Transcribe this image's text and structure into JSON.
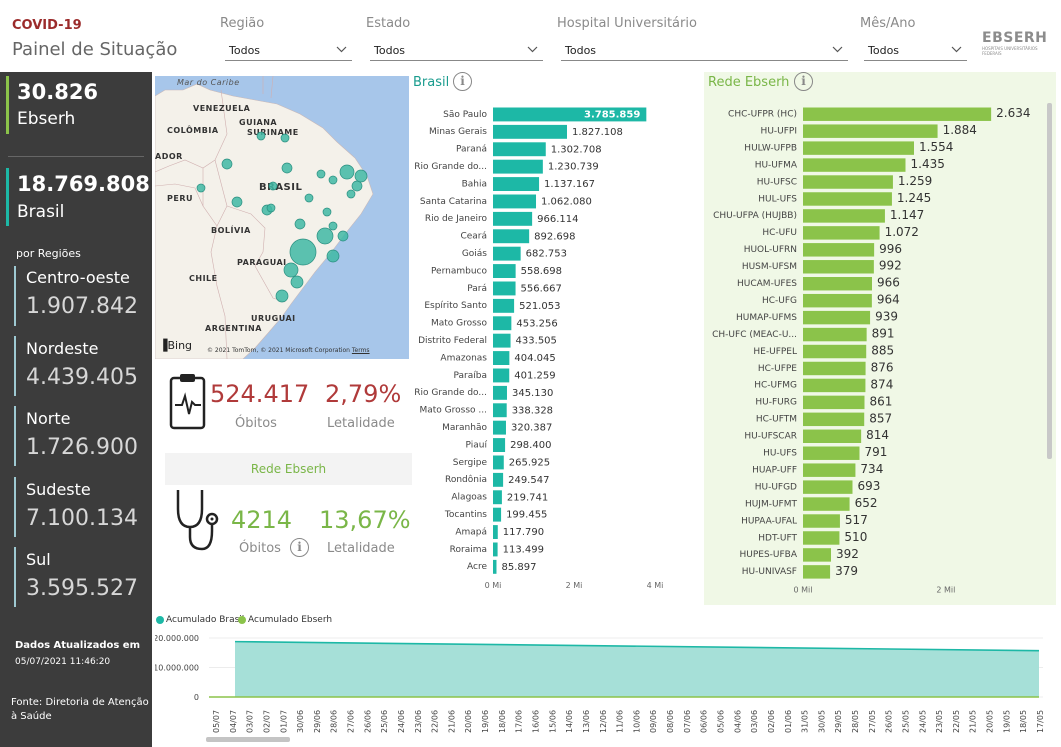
{
  "header": {
    "app_tag": "COVID-19",
    "title": "Painel de Situação",
    "logo_text": "EBSERH",
    "logo_subtitle": "HOSPITAIS UNIVERSITÁRIOS FEDERAIS"
  },
  "filters": [
    {
      "label": "Região",
      "value": "Todos"
    },
    {
      "label": "Estado",
      "value": "Todos"
    },
    {
      "label": "Hospital Universitário",
      "value": "Todos"
    },
    {
      "label": "Mês/Ano",
      "value": "Todos"
    }
  ],
  "sidebar": {
    "ebserh_total": "30.826",
    "ebserh_label": "Ebserh",
    "brasil_total": "18.769.808",
    "brasil_label": "Brasil",
    "regions_title": "por Regiões",
    "regions": [
      {
        "name": "Centro-oeste",
        "value": "1.907.842"
      },
      {
        "name": "Nordeste",
        "value": "4.439.405"
      },
      {
        "name": "Norte",
        "value": "1.726.900"
      },
      {
        "name": "Sudeste",
        "value": "7.100.134"
      },
      {
        "name": "Sul",
        "value": "3.595.527"
      }
    ],
    "updated_label": "Dados Atualizados em",
    "updated_at": "05/07/2021 11:46:20",
    "source": "Fonte: Diretoria de Atenção à Saúde"
  },
  "map": {
    "labels": [
      "Mar do Caribe",
      "VENEZUELA",
      "GUIANA",
      "COLÔMBIA",
      "SURINAME",
      "ADOR",
      "BRASIL",
      "PERU",
      "BOLÍVIA",
      "PARAGUAI",
      "CHILE",
      "URUGUAI",
      "ARGENTINA"
    ],
    "bing": "Bing",
    "attribution": "© 2021 TomTom, © 2021 Microsoft Corporation",
    "terms": "Terms",
    "bubble_color": "#3fb8a4"
  },
  "kpis": {
    "brasil": {
      "obitos": "524.417",
      "obitos_label": "Óbitos",
      "letalidade": "2,79%",
      "letalidade_label": "Letalidade"
    },
    "rede_title": "Rede Ebserh",
    "ebserh": {
      "obitos": "4214",
      "obitos_label": "Óbitos",
      "letalidade": "13,67%",
      "letalidade_label": "Letalidade"
    }
  },
  "colors": {
    "teal": "#1db8a6",
    "green": "#8bc34a",
    "red": "#b03a3a",
    "dark": "#3c3c3c"
  },
  "chart_data": [
    {
      "type": "bar",
      "title": "Brasil",
      "orientation": "horizontal",
      "categories": [
        "São Paulo",
        "Minas Gerais",
        "Paraná",
        "Rio Grande do...",
        "Bahia",
        "Santa Catarina",
        "Rio de Janeiro",
        "Ceará",
        "Goiás",
        "Pernambuco",
        "Pará",
        "Espírito Santo",
        "Mato Grosso",
        "Distrito Federal",
        "Amazonas",
        "Paraíba",
        "Rio Grande do...",
        "Mato Grosso ...",
        "Maranhão",
        "Piauí",
        "Sergipe",
        "Rondônia",
        "Alagoas",
        "Tocantins",
        "Amapá",
        "Roraima",
        "Acre"
      ],
      "values": [
        3785859,
        1827108,
        1302708,
        1230739,
        1137167,
        1062080,
        966114,
        892698,
        682753,
        558698,
        556667,
        521053,
        453256,
        433505,
        404045,
        401259,
        345130,
        338328,
        320387,
        298400,
        265925,
        249547,
        219741,
        199455,
        117790,
        113499,
        85897
      ],
      "labels": [
        "3.785.859",
        "1.827.108",
        "1.302.708",
        "1.230.739",
        "1.137.167",
        "1.062.080",
        "966.114",
        "892.698",
        "682.753",
        "558.698",
        "556.667",
        "521.053",
        "453.256",
        "433.505",
        "404.045",
        "401.259",
        "345.130",
        "338.328",
        "320.387",
        "298.400",
        "265.925",
        "249.547",
        "219.741",
        "199.455",
        "117.790",
        "113.499",
        "85.897"
      ],
      "xlim": [
        0,
        4000000
      ],
      "xticks": [
        "0 Mi",
        "2 Mi",
        "4 Mi"
      ],
      "color": "#1db8a6"
    },
    {
      "type": "bar",
      "title": "Rede Ebserh",
      "orientation": "horizontal",
      "categories": [
        "CHC-UFPR (HC)",
        "HU-UFPI",
        "HULW-UFPB",
        "HU-UFMA",
        "HU-UFSC",
        "HUL-UFS",
        "CHU-UFPA (HUJBB)",
        "HC-UFU",
        "HUOL-UFRN",
        "HUSM-UFSM",
        "HUCAM-UFES",
        "HC-UFG",
        "HUMAP-UFMS",
        "CH-UFC (MEAC-U...",
        "HE-UFPEL",
        "HC-UFPE",
        "HC-UFMG",
        "HU-FURG",
        "HC-UFTM",
        "HU-UFSCAR",
        "HU-UFS",
        "HUAP-UFF",
        "HU-UFGD",
        "HUJM-UFMT",
        "HUPAA-UFAL",
        "HDT-UFT",
        "HUPES-UFBA",
        "HU-UNIVASF"
      ],
      "values": [
        2634,
        1884,
        1554,
        1435,
        1259,
        1245,
        1147,
        1072,
        996,
        992,
        966,
        964,
        939,
        891,
        885,
        876,
        874,
        861,
        857,
        814,
        791,
        734,
        693,
        652,
        517,
        510,
        392,
        379
      ],
      "labels": [
        "2.634",
        "1.884",
        "1.554",
        "1.435",
        "1.259",
        "1.245",
        "1.147",
        "1.072",
        "996",
        "992",
        "966",
        "964",
        "939",
        "891",
        "885",
        "876",
        "874",
        "861",
        "857",
        "814",
        "791",
        "734",
        "693",
        "652",
        "517",
        "510",
        "392",
        "379"
      ],
      "xlim": [
        0,
        2800
      ],
      "xticks": [
        "0 Mil",
        "2 Mil"
      ],
      "color": "#8bc34a"
    },
    {
      "type": "area",
      "series": [
        {
          "name": "Acumulado Brasil",
          "color": "#1db8a6",
          "start_value": 18769808,
          "end_value": 15700000
        },
        {
          "name": "Acumulado Ebserh",
          "color": "#8bc34a",
          "start_value": 30826,
          "end_value": 25000
        }
      ],
      "yticks": [
        "20.000.000",
        "10.000.000",
        "0"
      ],
      "ylim": [
        0,
        20000000
      ],
      "x": [
        "05/07",
        "04/07",
        "03/07",
        "02/07",
        "01/07",
        "30/06",
        "29/06",
        "28/06",
        "27/06",
        "26/06",
        "25/06",
        "24/06",
        "23/06",
        "22/06",
        "21/06",
        "20/06",
        "19/06",
        "18/06",
        "17/06",
        "16/06",
        "15/06",
        "14/06",
        "13/06",
        "12/06",
        "11/06",
        "10/06",
        "09/06",
        "08/06",
        "07/06",
        "06/06",
        "05/06",
        "04/06",
        "03/06",
        "02/06",
        "01/06",
        "31/05",
        "30/05",
        "29/05",
        "28/05",
        "27/05",
        "26/05",
        "25/05",
        "24/05",
        "23/05",
        "22/05",
        "21/05",
        "20/05",
        "19/05",
        "18/05",
        "17/05"
      ]
    }
  ]
}
